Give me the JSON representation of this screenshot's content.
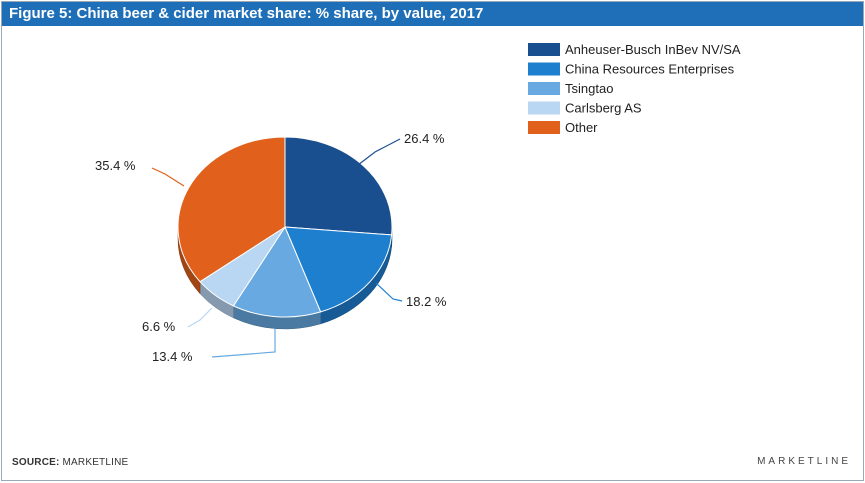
{
  "header": {
    "title": "Figure 5: China beer & cider market share: % share, by value, 2017"
  },
  "footer": {
    "source_label": "SOURCE:",
    "source_value": "MARKETLINE",
    "brand": "MARKETLINE"
  },
  "chart_data": {
    "type": "pie",
    "title": "Figure 5: China beer & cider market share: % share, by value, 2017",
    "legend_position": "top-right",
    "categories": [
      "Anheuser-Busch InBev NV/SA",
      "China Resources Enterprises",
      "Tsingtao",
      "Carlsberg AS",
      "Other"
    ],
    "values": [
      26.4,
      18.2,
      13.4,
      6.6,
      35.4
    ],
    "value_labels": [
      "26.4 %",
      "18.2 %",
      "13.4 %",
      "6.6 %",
      "35.4 %"
    ],
    "colors": [
      "#1a4f8f",
      "#1e7fcf",
      "#67a9e0",
      "#b9d6f2",
      "#e0601c"
    ]
  }
}
